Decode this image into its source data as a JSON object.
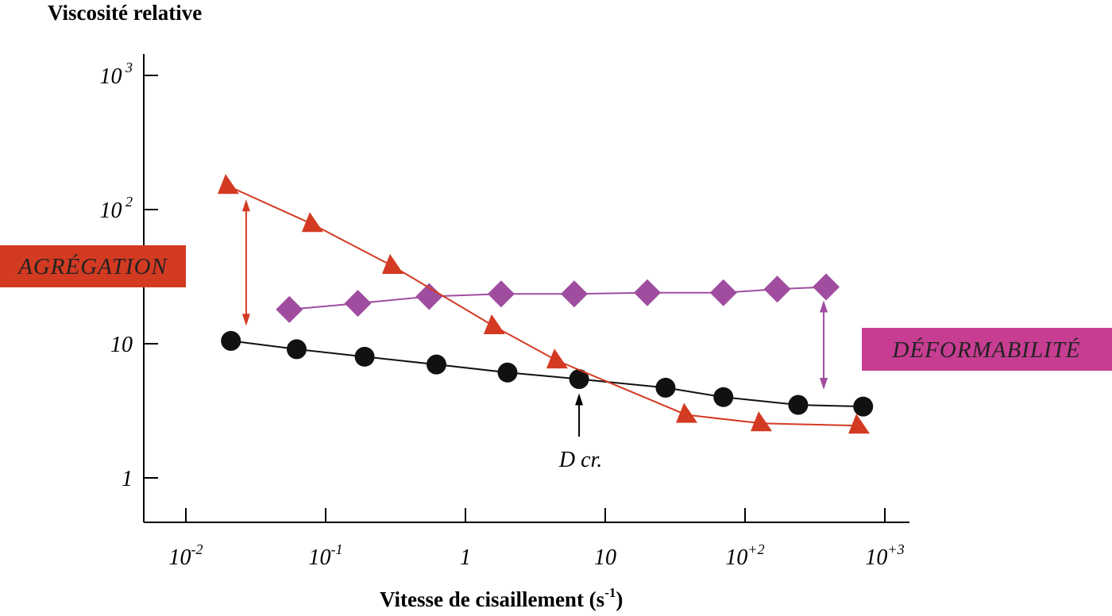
{
  "chart_data": {
    "type": "line",
    "title": "",
    "ylabel": "Viscosité relative",
    "xlabel_main": "Vitesse de cisaillement (s",
    "xlabel_exp": "-1",
    "xlabel_close": ")",
    "xscale": "log",
    "yscale": "log",
    "xlim": [
      0.0075,
      1100
    ],
    "ylim": [
      0.67,
      2000
    ],
    "x_ticks": [
      {
        "value": 0.01,
        "base": "10",
        "exp": "-2"
      },
      {
        "value": 0.1,
        "base": "10",
        "exp": "-1"
      },
      {
        "value": 1,
        "base": "1",
        "exp": ""
      },
      {
        "value": 10,
        "base": "10",
        "exp": ""
      },
      {
        "value": 100,
        "base": "10",
        "exp": "+2"
      },
      {
        "value": 1000,
        "base": "10",
        "exp": "+3"
      }
    ],
    "y_ticks": [
      {
        "value": 1,
        "base": "1",
        "exp": ""
      },
      {
        "value": 10,
        "base": "10",
        "exp": ""
      },
      {
        "value": 100,
        "base": "10",
        "exp": " 2"
      },
      {
        "value": 1000,
        "base": "10",
        "exp": " 3"
      }
    ],
    "grid": false,
    "series": [
      {
        "marker": "triangle",
        "color": "#d33a22",
        "points": [
          {
            "x": 0.02,
            "y": 150
          },
          {
            "x": 0.08,
            "y": 78
          },
          {
            "x": 0.3,
            "y": 38
          },
          {
            "x": 1.6,
            "y": 13.5
          },
          {
            "x": 4.5,
            "y": 7.5
          },
          {
            "x": 38,
            "y": 2.95
          },
          {
            "x": 130,
            "y": 2.55
          },
          {
            "x": 650,
            "y": 2.45
          }
        ]
      },
      {
        "marker": "diamond",
        "color": "#a04d9f",
        "points": [
          {
            "x": 0.055,
            "y": 18
          },
          {
            "x": 0.17,
            "y": 20
          },
          {
            "x": 0.55,
            "y": 22.5
          },
          {
            "x": 1.8,
            "y": 23.5
          },
          {
            "x": 6,
            "y": 23.5
          },
          {
            "x": 20,
            "y": 24
          },
          {
            "x": 70,
            "y": 24
          },
          {
            "x": 170,
            "y": 25.5
          },
          {
            "x": 380,
            "y": 26.5
          }
        ]
      },
      {
        "marker": "circle",
        "color": "#111111",
        "points": [
          {
            "x": 0.021,
            "y": 10.5
          },
          {
            "x": 0.062,
            "y": 9.1
          },
          {
            "x": 0.19,
            "y": 8
          },
          {
            "x": 0.62,
            "y": 7
          },
          {
            "x": 2,
            "y": 6.1
          },
          {
            "x": 6.5,
            "y": 5.45
          },
          {
            "x": 27,
            "y": 4.7
          },
          {
            "x": 70,
            "y": 4
          },
          {
            "x": 240,
            "y": 3.5
          },
          {
            "x": 700,
            "y": 3.4
          }
        ]
      }
    ],
    "annotations": {
      "agregation": {
        "label": "AGRÉGATION",
        "color": "#d33a22",
        "x": 0.027,
        "y_from": 150,
        "y_to": 10.5
      },
      "deformabilite": {
        "label": "DÉFORMABILITÉ",
        "color": "#c73d92",
        "x": 380,
        "y_from": 26.5,
        "y_to": 3.5
      },
      "dcr": {
        "label": "D cr.",
        "x": 6.5,
        "y_arrow_tip": 5.45
      }
    }
  }
}
